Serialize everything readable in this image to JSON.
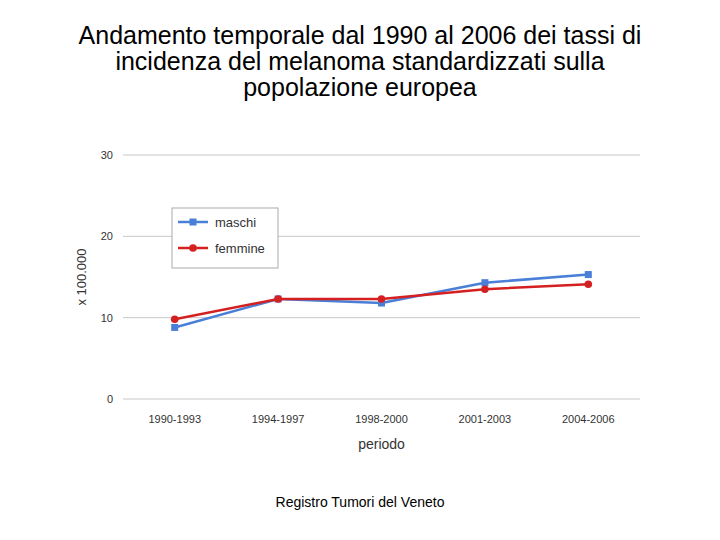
{
  "chart_data": {
    "type": "line",
    "title": "Andamento temporale dal 1990 al 2006 dei tassi di incidenza del melanoma standardizzati sulla popolazione europea",
    "x_label": "periodo",
    "y_label": "x 100.000",
    "source": "Registro Tumori del Veneto",
    "categories": [
      "1990-1993",
      "1994-1997",
      "1998-2000",
      "2001-2003",
      "2004-2006"
    ],
    "series": [
      {
        "name": "maschi",
        "color": "#4a7fd8",
        "marker": "square",
        "values": [
          8.8,
          12.3,
          11.8,
          14.3,
          15.3
        ]
      },
      {
        "name": "femmine",
        "color": "#d42020",
        "marker": "circle",
        "values": [
          9.8,
          12.3,
          12.3,
          13.5,
          14.1
        ]
      }
    ],
    "ylim": [
      0,
      30
    ],
    "yticks": [
      0,
      10,
      20,
      30
    ],
    "grid": true,
    "legend": "top-left"
  }
}
